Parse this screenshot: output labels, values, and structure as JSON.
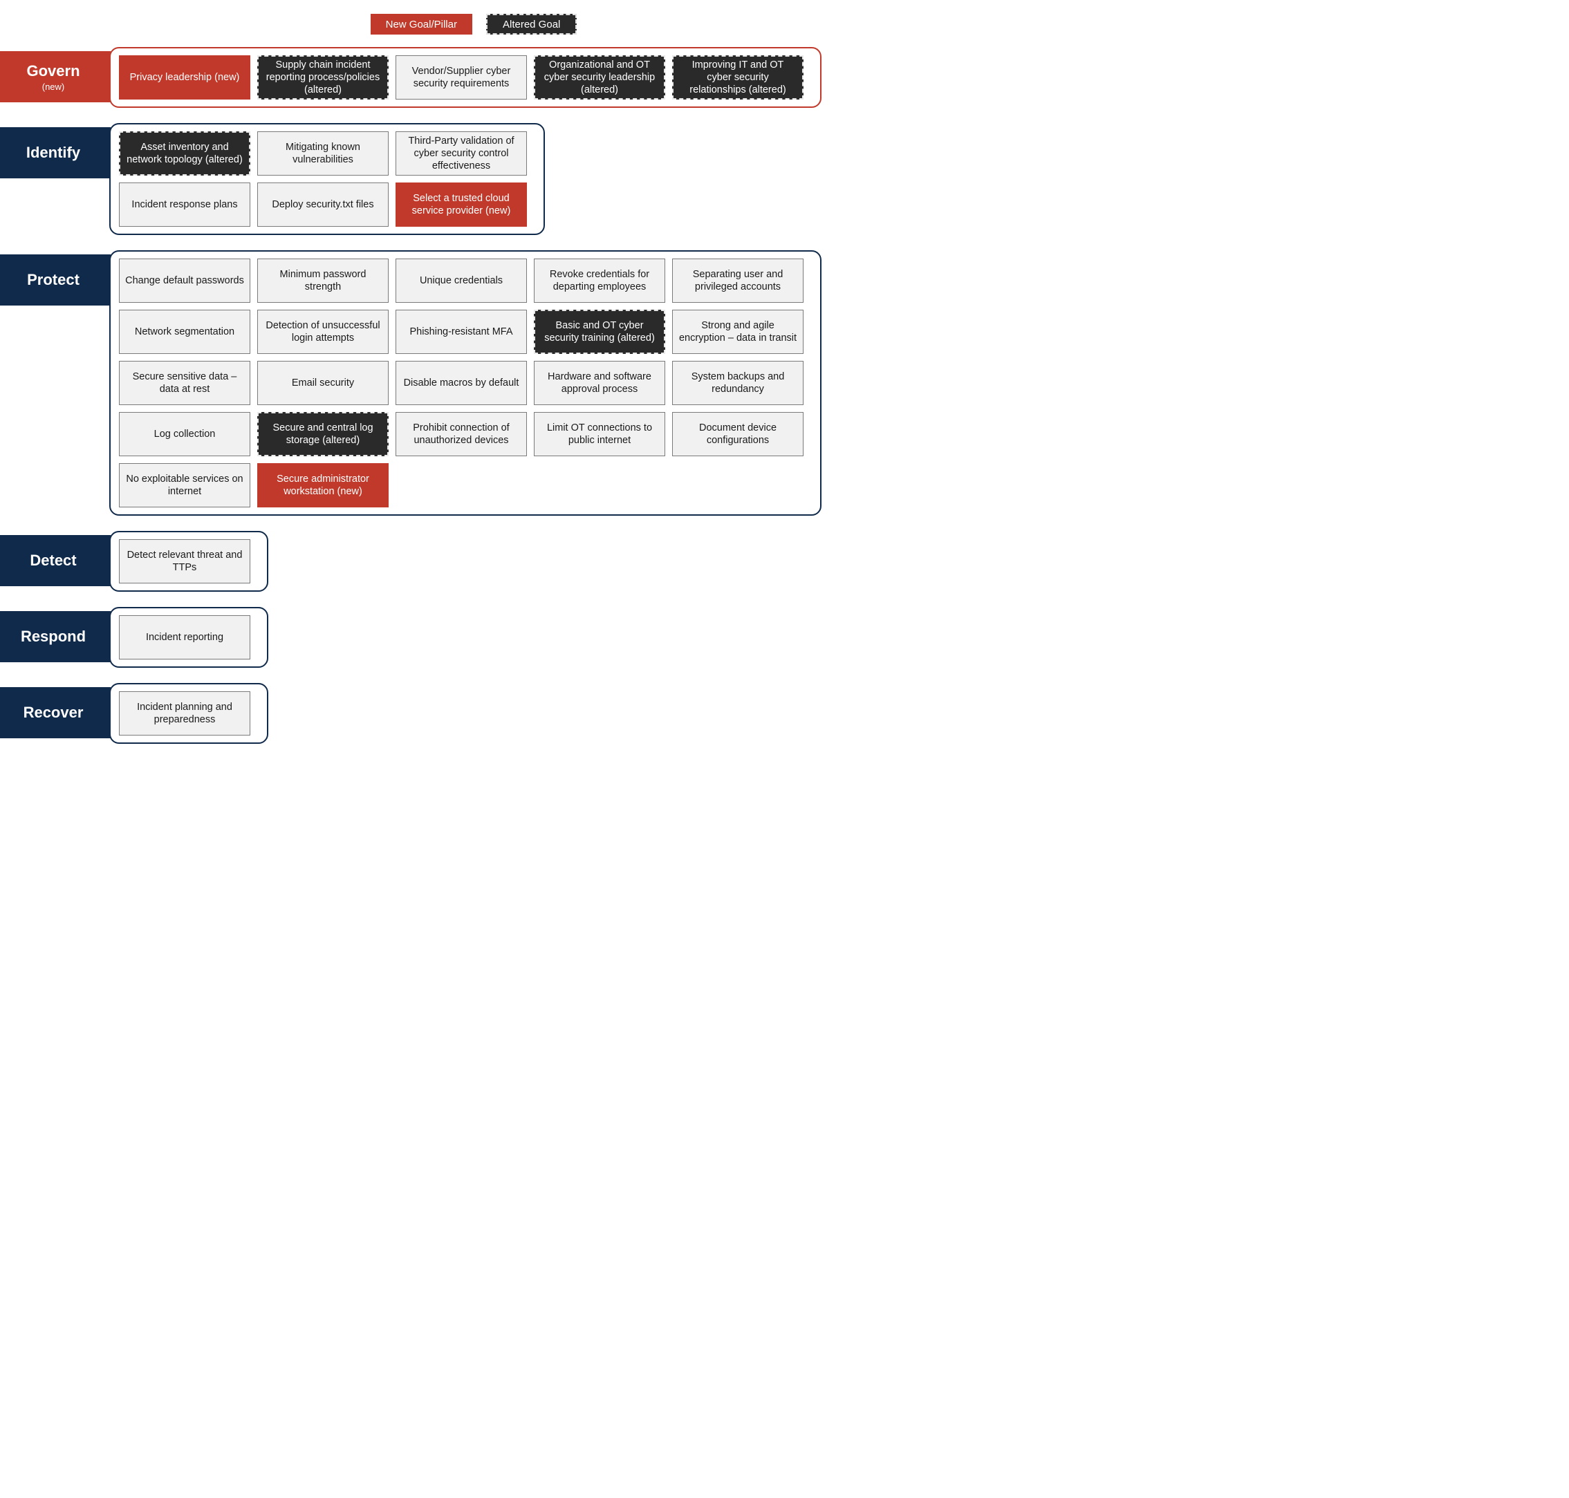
{
  "type": "infographic",
  "legend": {
    "new": "New Goal/Pillar",
    "altered": "Altered Goal",
    "new_color": "#c1392b",
    "altered_color": "#2a2a2a"
  },
  "colors": {
    "new_bg": "#c1392b",
    "altered_bg": "#2a2a2a",
    "default_bg": "#f1f1f1",
    "default_border": "#7a7a7a",
    "category_label_bg": "#0f2a4a",
    "govern_border": "#c1392b",
    "default_category_border": "#0f2a4a",
    "text_light": "#ffffff",
    "text_dark": "#1a1a1a",
    "page_bg": "#ffffff"
  },
  "typography": {
    "category_label_fontsize": 22,
    "goal_fontsize": 14.5,
    "legend_fontsize": 15
  },
  "layout": {
    "goal_width": 190,
    "goal_height": 64,
    "label_width": 160,
    "gap": 10
  },
  "categories": [
    {
      "id": "govern",
      "label": "Govern",
      "sublabel": "(new)",
      "style": "govern",
      "cols": 5,
      "goals": [
        {
          "text": "Privacy leadership (new)",
          "kind": "new"
        },
        {
          "text": "Supply chain incident reporting process/policies (altered)",
          "kind": "altered"
        },
        {
          "text": "Vendor/Supplier cyber security requirements",
          "kind": "default"
        },
        {
          "text": "Organizational and OT cyber security leadership (altered)",
          "kind": "altered"
        },
        {
          "text": "Improving IT and OT cyber security relationships (altered)",
          "kind": "altered"
        }
      ]
    },
    {
      "id": "identify",
      "label": "Identify",
      "style": "default",
      "cols": 3,
      "goals": [
        {
          "text": "Asset inventory and network topology (altered)",
          "kind": "altered"
        },
        {
          "text": "Mitigating known vulnerabilities",
          "kind": "default"
        },
        {
          "text": "Third-Party validation of cyber security control effectiveness",
          "kind": "default"
        },
        {
          "text": "Incident response plans",
          "kind": "default"
        },
        {
          "text": "Deploy security.txt files",
          "kind": "default"
        },
        {
          "text": "Select a trusted cloud service provider (new)",
          "kind": "new"
        }
      ]
    },
    {
      "id": "protect",
      "label": "Protect",
      "style": "default",
      "cols": 5,
      "goals": [
        {
          "text": "Change default passwords",
          "kind": "default"
        },
        {
          "text": "Minimum password strength",
          "kind": "default"
        },
        {
          "text": "Unique credentials",
          "kind": "default"
        },
        {
          "text": "Revoke credentials for departing employees",
          "kind": "default"
        },
        {
          "text": "Separating user and privileged accounts",
          "kind": "default"
        },
        {
          "text": "Network segmentation",
          "kind": "default"
        },
        {
          "text": "Detection of unsuccessful login attempts",
          "kind": "default"
        },
        {
          "text": "Phishing-resistant MFA",
          "kind": "default"
        },
        {
          "text": "Basic and OT cyber security training (altered)",
          "kind": "altered"
        },
        {
          "text": "Strong and agile encryption – data in transit",
          "kind": "default"
        },
        {
          "text": "Secure sensitive data – data at rest",
          "kind": "default"
        },
        {
          "text": "Email security",
          "kind": "default"
        },
        {
          "text": "Disable macros by default",
          "kind": "default"
        },
        {
          "text": "Hardware and software approval process",
          "kind": "default"
        },
        {
          "text": "System backups and redundancy",
          "kind": "default"
        },
        {
          "text": "Log collection",
          "kind": "default"
        },
        {
          "text": "Secure and central log storage (altered)",
          "kind": "altered"
        },
        {
          "text": "Prohibit connection of unauthorized devices",
          "kind": "default"
        },
        {
          "text": "Limit OT connections to public internet",
          "kind": "default"
        },
        {
          "text": "Document device configurations",
          "kind": "default"
        },
        {
          "text": "No exploitable services on internet",
          "kind": "default"
        },
        {
          "text": "Secure administrator workstation (new)",
          "kind": "new"
        }
      ]
    },
    {
      "id": "detect",
      "label": "Detect",
      "style": "default",
      "cols": 1,
      "goals": [
        {
          "text": "Detect relevant threat and TTPs",
          "kind": "default"
        }
      ]
    },
    {
      "id": "respond",
      "label": "Respond",
      "style": "default",
      "cols": 1,
      "goals": [
        {
          "text": "Incident reporting",
          "kind": "default"
        }
      ]
    },
    {
      "id": "recover",
      "label": "Recover",
      "style": "default",
      "cols": 1,
      "goals": [
        {
          "text": "Incident planning and preparedness",
          "kind": "default"
        }
      ]
    }
  ]
}
